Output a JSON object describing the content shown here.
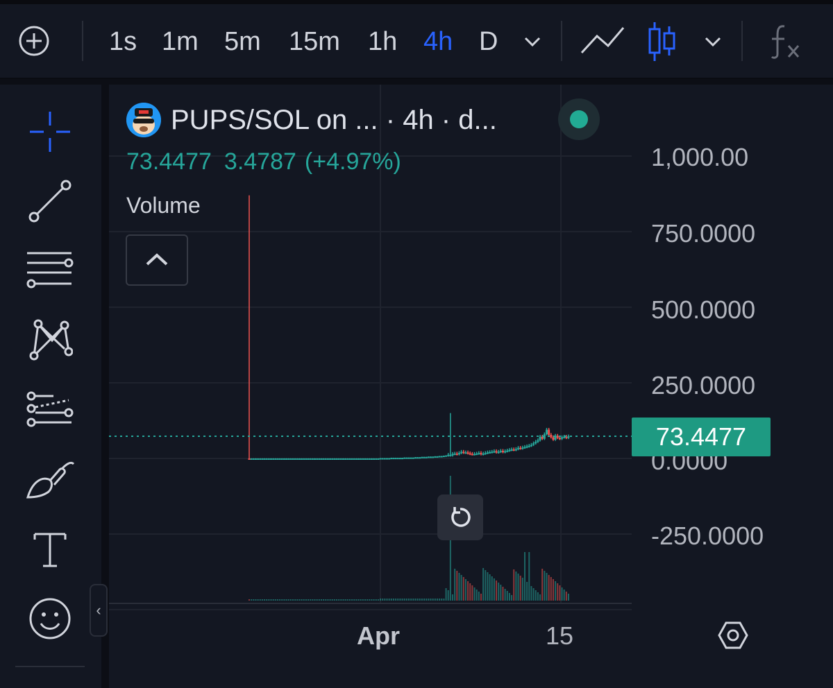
{
  "toolbar": {
    "add_icon": "plus-circle-icon",
    "timeframes": [
      {
        "label": "1s",
        "active": false
      },
      {
        "label": "1m",
        "active": false
      },
      {
        "label": "5m",
        "active": false
      },
      {
        "label": "15m",
        "active": false
      },
      {
        "label": "1h",
        "active": false
      },
      {
        "label": "4h",
        "active": true
      },
      {
        "label": "D",
        "active": false
      }
    ],
    "icons": [
      "chevron-down-icon",
      "line-chart-icon",
      "candlestick-icon",
      "chevron-down-icon",
      "indicators-fx-icon"
    ]
  },
  "sidebar": {
    "tools": [
      "crosshair-icon",
      "trend-line-icon",
      "fib-levels-icon",
      "pattern-icon",
      "forecast-icon",
      "brush-icon",
      "text-icon",
      "emoji-icon"
    ],
    "collapse_label": "‹"
  },
  "legend": {
    "title": "PUPS/SOL on ... · 4h · d...",
    "close": "73.4477",
    "change": "3.4787",
    "change_pct": "(+4.97%)",
    "volume_label": "Volume"
  },
  "price_axis": {
    "labels": [
      "1,000.00",
      "750.0000",
      "500.0000",
      "250.0000",
      "0.0000",
      "-250.0000"
    ],
    "last_price": "73.4477"
  },
  "time_axis": {
    "labels": [
      "Apr",
      "15"
    ]
  },
  "colors": {
    "accent": "#2962ff",
    "up": "#26a69a",
    "down": "#ef5350",
    "last_price_bg": "#1e9a82",
    "background": "#131722"
  },
  "chart_data": {
    "type": "candlestick",
    "price_axis_range": [
      -250,
      1000
    ],
    "price_ticks": [
      1000,
      750,
      500,
      250,
      0,
      -250
    ],
    "last_price": 73.4477,
    "note_spikes": [
      {
        "index": 0,
        "high": 870,
        "close": 0,
        "color": "down"
      },
      {
        "index": 92,
        "high": 150,
        "close": 10,
        "color": "up"
      }
    ],
    "close_series": [
      0,
      0,
      0,
      0,
      0,
      0,
      0,
      0,
      0,
      0,
      0,
      0,
      0,
      0,
      0,
      0,
      0,
      0,
      0,
      0,
      0,
      0,
      0,
      0,
      0,
      0,
      0,
      0,
      0,
      0,
      0,
      0,
      0,
      0,
      0,
      0,
      0,
      0,
      0,
      0,
      0,
      0,
      0,
      0,
      0,
      0,
      0,
      0,
      0,
      0,
      0,
      0,
      0,
      0,
      0,
      0,
      0,
      0,
      0,
      0,
      1,
      1,
      1,
      1,
      1,
      2,
      2,
      2,
      2,
      2,
      2,
      3,
      3,
      3,
      3,
      3,
      4,
      4,
      4,
      5,
      5,
      5,
      6,
      6,
      6,
      7,
      7,
      8,
      8,
      9,
      10,
      12,
      10,
      15,
      16,
      14,
      18,
      22,
      19,
      20,
      17,
      15,
      14,
      15,
      16,
      18,
      14,
      16,
      18,
      20,
      21,
      22,
      24,
      20,
      22,
      25,
      21,
      24,
      26,
      28,
      30,
      28,
      31,
      35,
      33,
      36,
      38,
      40,
      42,
      45,
      50,
      55,
      60,
      72,
      65,
      80,
      95,
      78,
      70,
      62,
      75,
      68,
      65,
      70,
      72,
      68,
      73
    ]
  }
}
